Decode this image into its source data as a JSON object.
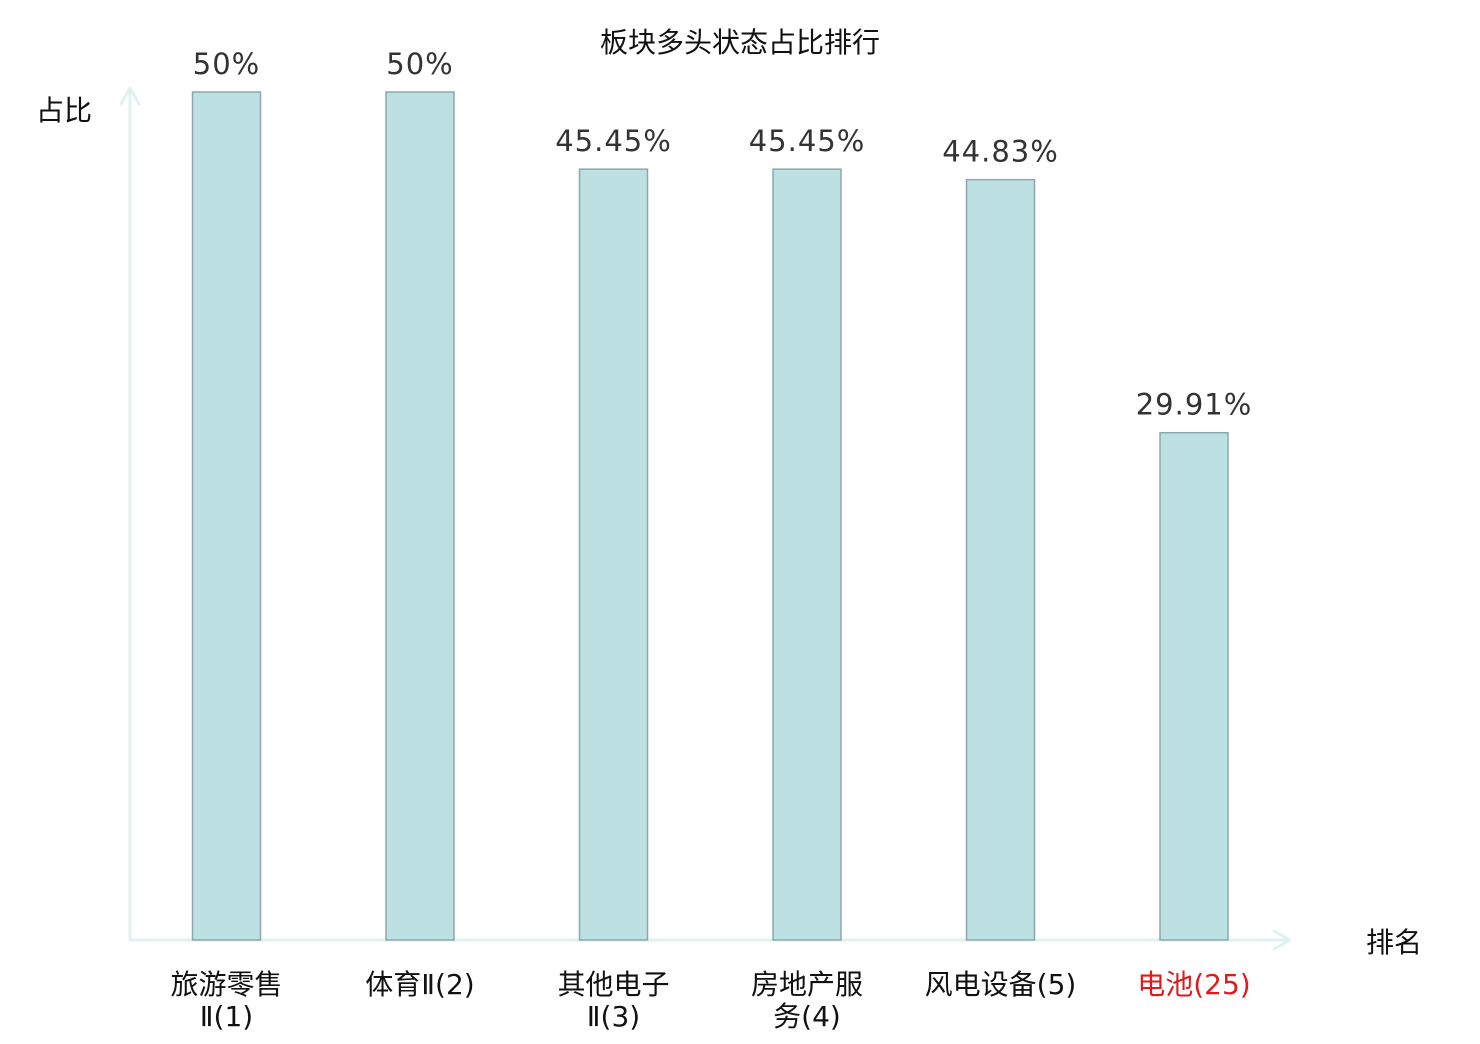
{
  "chart_data": {
    "type": "bar",
    "title": "板块多头状态占比排行",
    "ylabel": "占比",
    "xlabel": "排名",
    "ylim": [
      0,
      50
    ],
    "grid": false,
    "legend": "none",
    "categories": [
      {
        "lines": [
          "旅游零售",
          "Ⅱ(1)"
        ],
        "highlight": false
      },
      {
        "lines": [
          "体育Ⅱ(2)"
        ],
        "highlight": false
      },
      {
        "lines": [
          "其他电子",
          "Ⅱ(3)"
        ],
        "highlight": false
      },
      {
        "lines": [
          "房地产服",
          "务(4)"
        ],
        "highlight": false
      },
      {
        "lines": [
          "风电设备(5)"
        ],
        "highlight": false
      },
      {
        "lines": [
          "电池(25)"
        ],
        "highlight": true
      }
    ],
    "values": [
      50,
      50,
      45.45,
      45.45,
      44.83,
      29.91
    ],
    "value_labels": [
      "50%",
      "50%",
      "45.45%",
      "45.45%",
      "44.83%",
      "29.91%"
    ],
    "colors": {
      "bar_fill": "#bde0e3",
      "bar_stroke": "#8aa8ad",
      "axis": "#e0f2ef",
      "text": "#111111",
      "value_text": "#333333",
      "highlight": "#e0191b"
    }
  }
}
